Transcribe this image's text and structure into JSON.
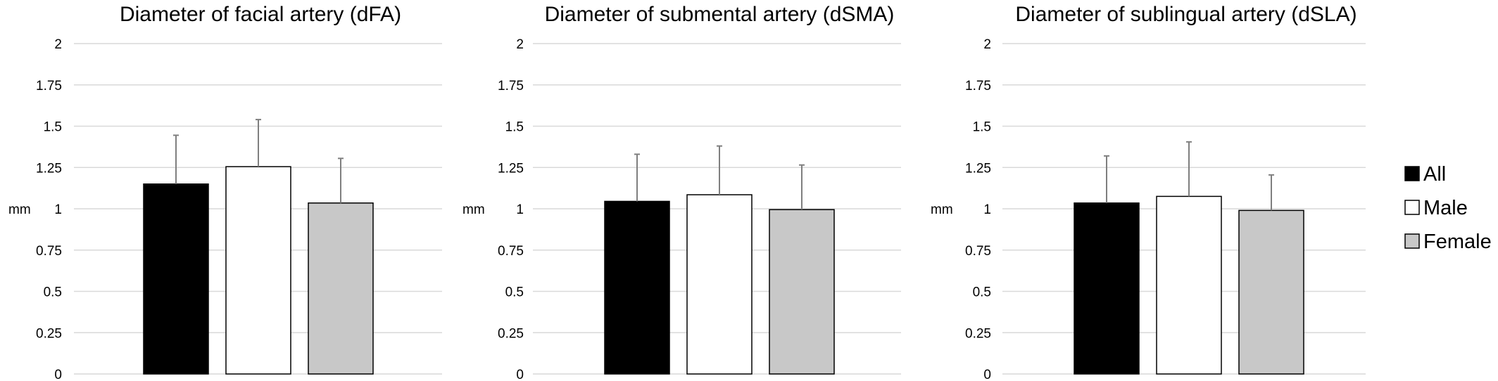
{
  "chart_data": [
    {
      "type": "bar",
      "title": "Diameter of facial artery (dFA)",
      "ylabel": "mm",
      "ylim": [
        0,
        2
      ],
      "yticks": [
        "0",
        "0.25",
        "0.5",
        "0.75",
        "1",
        "1.25",
        "1.5",
        "1.75",
        "2"
      ],
      "grid": true,
      "categories": [
        "All",
        "Male",
        "Female"
      ],
      "values": [
        1.15,
        1.255,
        1.035
      ],
      "errors": [
        0.295,
        0.285,
        0.27
      ]
    },
    {
      "type": "bar",
      "title": "Diameter of submental artery (dSMA)",
      "ylabel": "mm",
      "ylim": [
        0,
        2
      ],
      "yticks": [
        "0",
        "0.25",
        "0.5",
        "0.75",
        "1",
        "1.25",
        "1.5",
        "1.75",
        "2"
      ],
      "grid": true,
      "categories": [
        "All",
        "Male",
        "Female"
      ],
      "values": [
        1.045,
        1.085,
        0.995
      ],
      "errors": [
        0.285,
        0.295,
        0.27
      ]
    },
    {
      "type": "bar",
      "title": "Diameter of sublingual artery (dSLA)",
      "ylabel": "mm",
      "ylim": [
        0,
        2
      ],
      "yticks": [
        "0",
        "0.25",
        "0.5",
        "0.75",
        "1",
        "1.25",
        "1.5",
        "1.75",
        "2"
      ],
      "grid": true,
      "categories": [
        "All",
        "Male",
        "Female"
      ],
      "values": [
        1.035,
        1.075,
        0.99
      ],
      "errors": [
        0.285,
        0.33,
        0.215
      ]
    }
  ],
  "legend": {
    "placement": "right",
    "items": [
      {
        "label": "All",
        "color": "#000000"
      },
      {
        "label": "Male",
        "color": "#ffffff"
      },
      {
        "label": "Female",
        "color": "#c8c8c8"
      }
    ]
  },
  "colors": {
    "All": "#000000",
    "Male": "#ffffff",
    "Female": "#c8c8c8",
    "grid": "#d9d9d9",
    "error_bar": "#7f7f7f"
  }
}
